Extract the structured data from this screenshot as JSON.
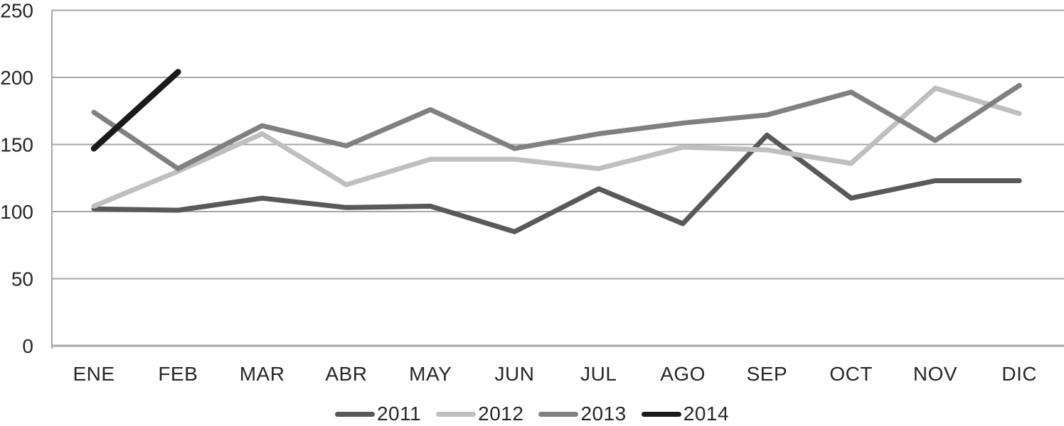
{
  "chart_data": {
    "type": "line",
    "categories": [
      "ENE",
      "FEB",
      "MAR",
      "ABR",
      "MAY",
      "JUN",
      "JUL",
      "AGO",
      "SEP",
      "OCT",
      "NOV",
      "DIC"
    ],
    "series": [
      {
        "name": "2011",
        "color": "#595959",
        "values": [
          102,
          101,
          110,
          103,
          104,
          85,
          117,
          91,
          157,
          110,
          123,
          123
        ]
      },
      {
        "name": "2012",
        "color": "#bfbfbf",
        "values": [
          104,
          130,
          158,
          120,
          139,
          139,
          132,
          148,
          146,
          136,
          192,
          173
        ]
      },
      {
        "name": "2013",
        "color": "#808080",
        "values": [
          174,
          132,
          164,
          149,
          176,
          147,
          158,
          166,
          172,
          189,
          153,
          194
        ]
      },
      {
        "name": "2014",
        "color": "#1a1a1a",
        "values": [
          147,
          204,
          null,
          null,
          null,
          null,
          null,
          null,
          null,
          null,
          null,
          null
        ]
      }
    ],
    "yticks": [
      0,
      50,
      100,
      150,
      200,
      250
    ],
    "ylim": [
      0,
      250
    ],
    "grid": true,
    "legend_position": "bottom",
    "colors": {
      "gridline": "#a6a6a6",
      "axis": "#a6a6a6",
      "label_text": "#262626"
    }
  }
}
